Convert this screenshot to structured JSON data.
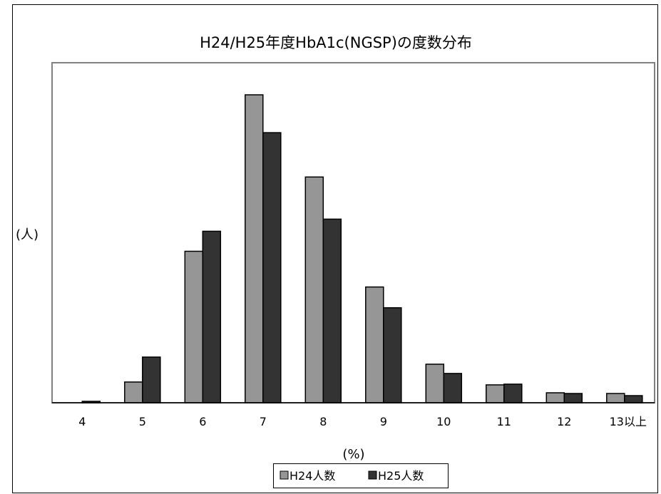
{
  "chart_data": {
    "type": "bar",
    "title": "H24/H25年度HbA1c(NGSP)の度数分布",
    "xlabel": "(%)",
    "ylabel": "(人)",
    "categories": [
      "4",
      "5",
      "6",
      "7",
      "8",
      "9",
      "10",
      "11",
      "12",
      "13以上"
    ],
    "series": [
      {
        "name": "H24人数",
        "color": "#969696",
        "values": [
          0,
          29,
          212,
          431,
          316,
          162,
          54,
          25,
          14,
          13
        ]
      },
      {
        "name": "H25人数",
        "color": "#333333",
        "values": [
          2,
          64,
          240,
          378,
          257,
          133,
          41,
          26,
          13,
          10
        ]
      }
    ],
    "ylim": [
      0,
      450
    ],
    "grid": false,
    "legend_position": "bottom"
  }
}
